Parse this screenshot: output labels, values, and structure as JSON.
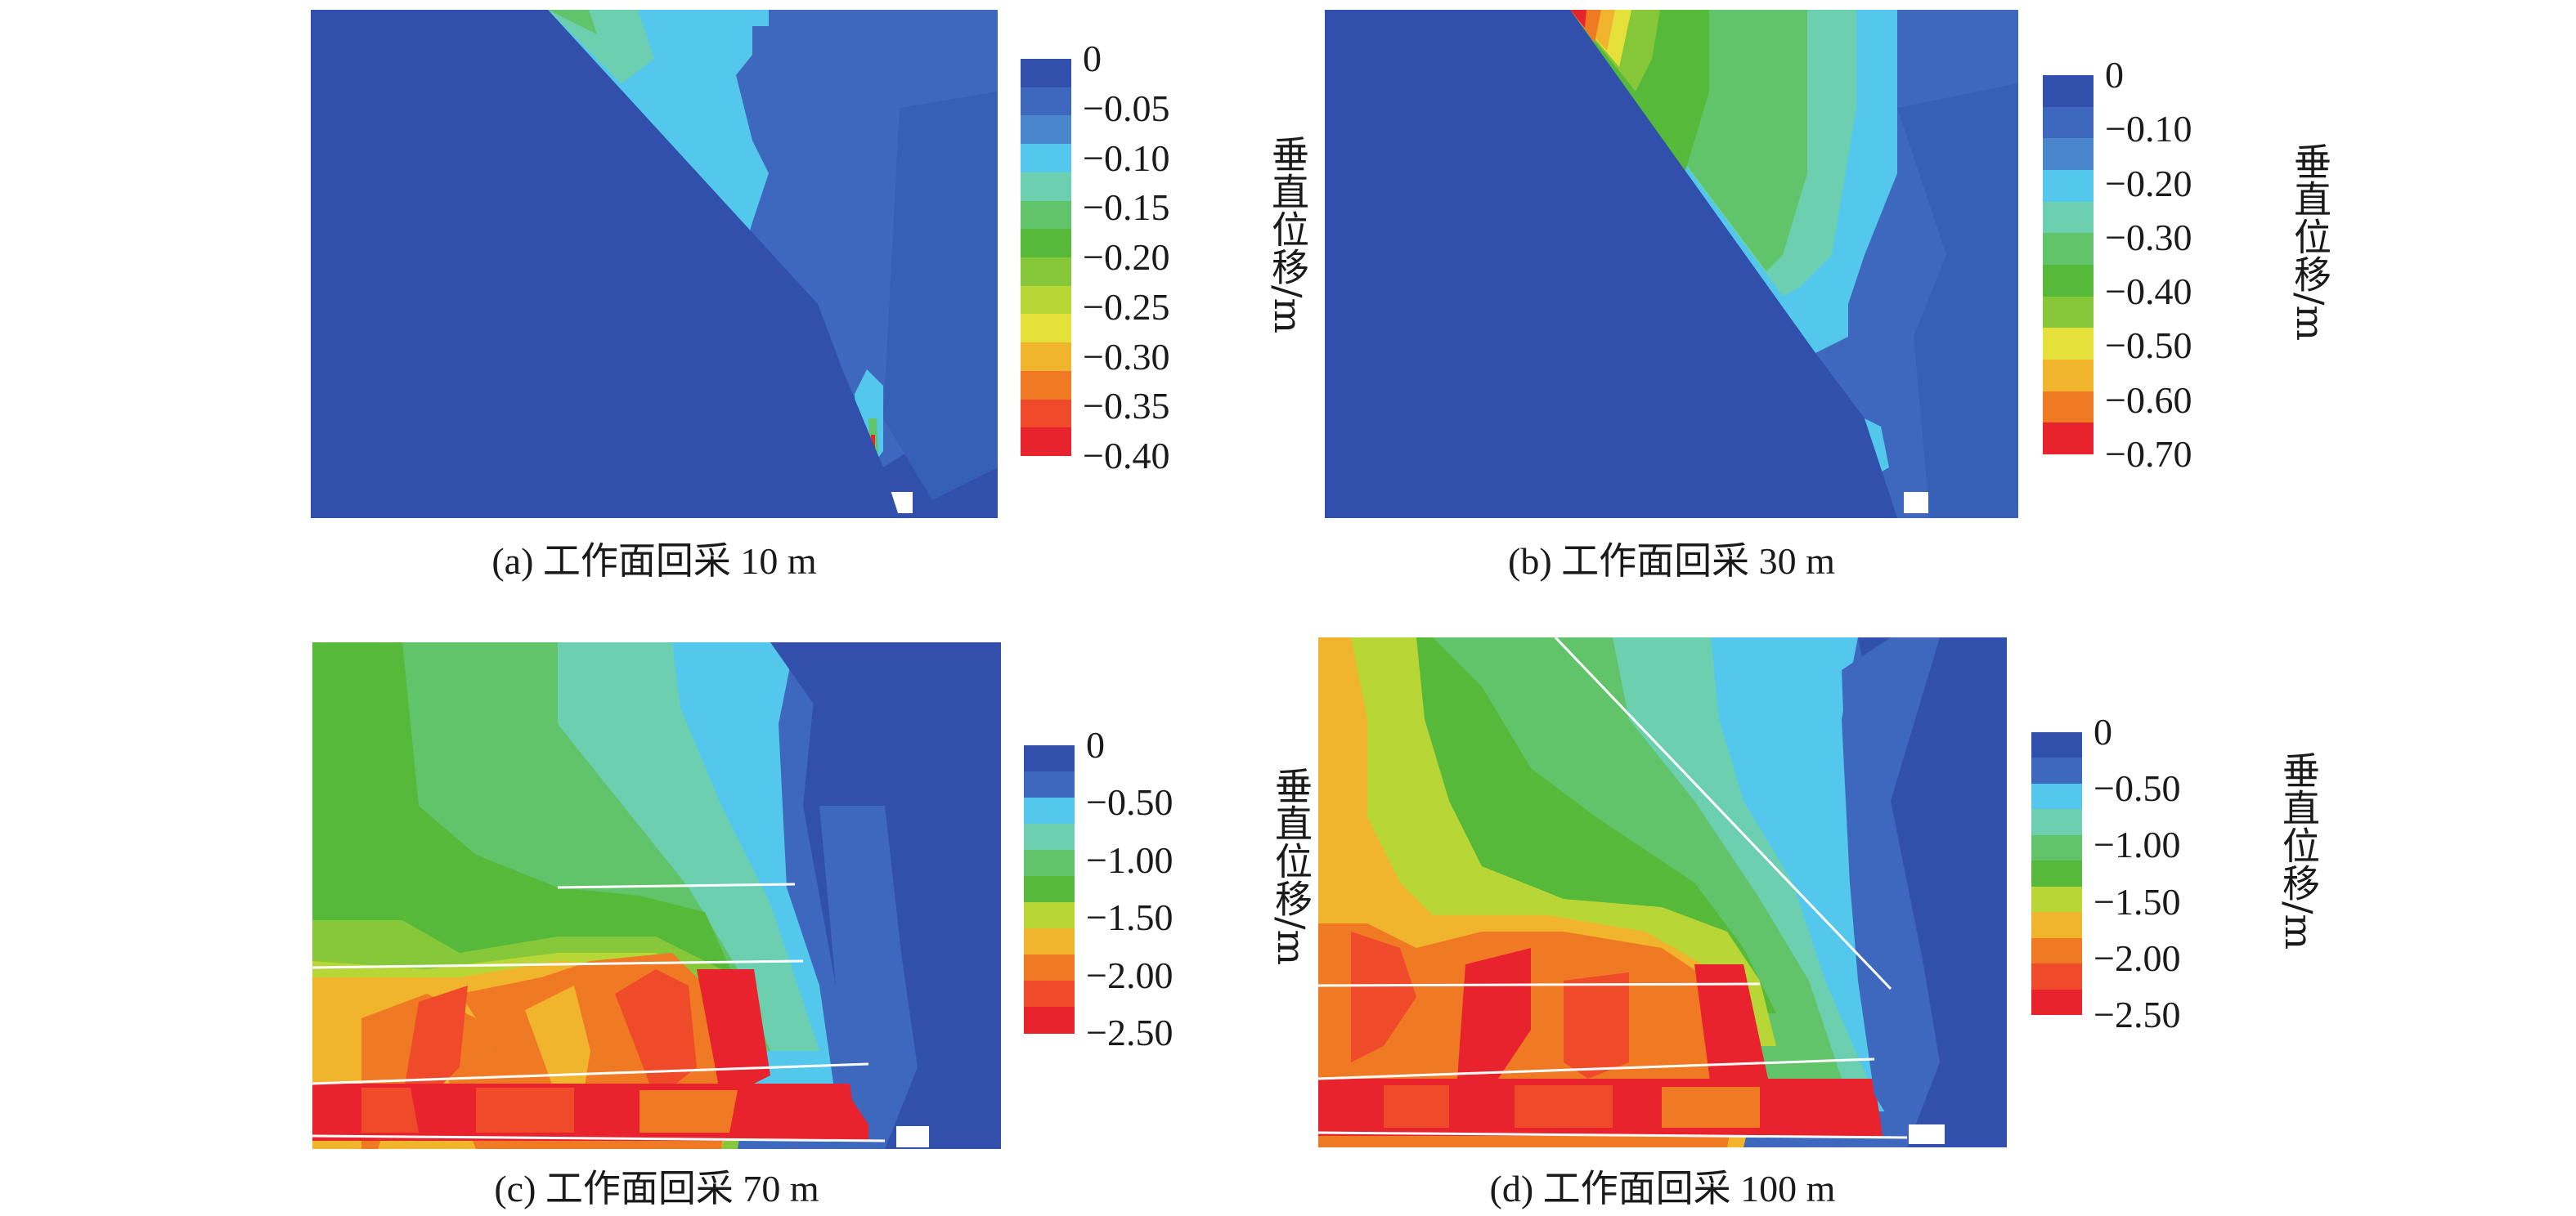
{
  "panels": [
    {
      "caption": "(a) 工作面回采 10 m",
      "colorbar": {
        "title": "垂直位移/m",
        "ticks": [
          "0",
          "−0.05",
          "−0.10",
          "−0.15",
          "−0.20",
          "−0.25",
          "−0.30",
          "−0.35",
          "−0.40"
        ],
        "colors": [
          "#3150ab",
          "#3d68bd",
          "#4a86cc",
          "#54c8ec",
          "#6ccfb0",
          "#62c46a",
          "#56b93a",
          "#86c83a",
          "#b8d635",
          "#e6e03a",
          "#f0b52c",
          "#f07a24",
          "#ef4a2a",
          "#e8232d"
        ]
      }
    },
    {
      "caption": "(b) 工作面回采 30 m",
      "colorbar": {
        "title": "垂直位移/m",
        "ticks": [
          "0",
          "−0.10",
          "−0.20",
          "−0.30",
          "−0.40",
          "−0.50",
          "−0.60",
          "−0.70"
        ],
        "colors": [
          "#3150ab",
          "#3d68bd",
          "#4a86cc",
          "#54c8ec",
          "#6ccfb0",
          "#62c46a",
          "#56b93a",
          "#86c83a",
          "#e6e03a",
          "#f0b52c",
          "#f07a24",
          "#e8232d"
        ]
      }
    },
    {
      "caption": "(c) 工作面回采 70 m",
      "colorbar": {
        "title": "垂直位移/m",
        "ticks": [
          "0",
          "−0.50",
          "−1.00",
          "−1.50",
          "−2.00",
          "−2.50"
        ],
        "colors": [
          "#3150ab",
          "#3d68bd",
          "#54c8ec",
          "#6ccfb0",
          "#62c46a",
          "#56b93a",
          "#b8d635",
          "#f0b52c",
          "#f07a24",
          "#ef4a2a",
          "#e8232d"
        ]
      }
    },
    {
      "caption": "(d) 工作面回采 100 m",
      "colorbar": {
        "title": "垂直位移/m",
        "ticks": [
          "0",
          "−0.50",
          "−1.00",
          "−1.50",
          "−2.00",
          "−2.50"
        ],
        "colors": [
          "#3150ab",
          "#3d68bd",
          "#54c8ec",
          "#6ccfb0",
          "#62c46a",
          "#56b93a",
          "#b8d635",
          "#f0b52c",
          "#f07a24",
          "#ef4a2a",
          "#e8232d"
        ]
      }
    }
  ]
}
